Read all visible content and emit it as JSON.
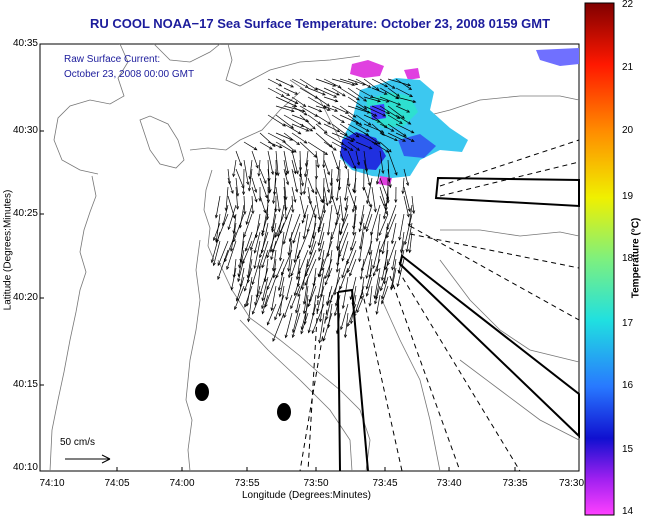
{
  "title": "RU COOL  NOAA−17  Sea Surface Temperature:  October 23, 2008 0159 GMT",
  "annotation": {
    "line1": "Raw Surface Current:",
    "line2": "October 23, 2008 00:00 GMT"
  },
  "scale_label": "50 cm/s",
  "x_axis": {
    "label": "Longitude (Degrees:Minutes)",
    "ticks": [
      "74:10",
      "74:05",
      "74:00",
      "73:55",
      "73:50",
      "73:45",
      "73:40",
      "73:35",
      "73:30"
    ]
  },
  "y_axis": {
    "label": "Latitude (Degrees:Minutes)",
    "ticks": [
      "40:35",
      "40:30",
      "40:25",
      "40:20",
      "40:15",
      "40:10"
    ]
  },
  "colorbar": {
    "label": "Temperature (°C)",
    "ticks": [
      "22",
      "21",
      "20",
      "19",
      "18",
      "17",
      "16",
      "15",
      "14"
    ],
    "range": [
      14,
      22
    ]
  }
}
